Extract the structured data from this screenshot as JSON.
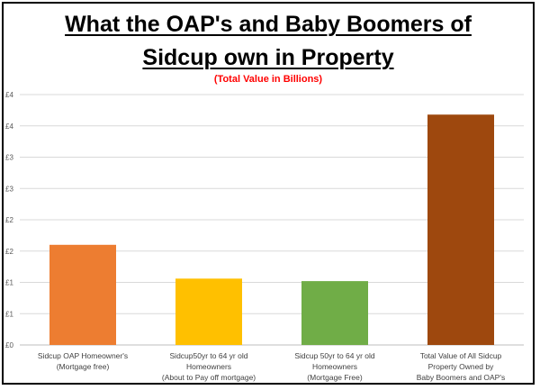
{
  "chart_data": {
    "type": "bar",
    "title_line1": "What the OAP's and Baby Boomers of",
    "title_line2": "Sidcup own in Property",
    "subtitle": "(Total Value in Billions)",
    "xlabel": "",
    "ylabel": "",
    "ylim": [
      0,
      4
    ],
    "yticks": [
      0,
      0.5,
      1,
      1.5,
      2,
      2.5,
      3,
      3.5,
      4
    ],
    "ytick_labels": [
      "£0",
      "£1",
      "£1",
      "£2",
      "£2",
      "£3",
      "£3",
      "£4",
      "£4"
    ],
    "grid": true,
    "categories": [
      [
        "Sidcup OAP Homeowner's",
        "(Mortgage free)"
      ],
      [
        "Sidcup50yr to 64 yr old",
        "Homeowners",
        "(About to Pay off mortgage)"
      ],
      [
        "Sidcup 50yr to 64 yr old",
        "Homeowners",
        "(Mortgage Free)"
      ],
      [
        "Total Value of All Sidcup",
        "Property Owned by",
        "Baby Boomers and OAP's"
      ]
    ],
    "values": [
      1.6,
      1.06,
      1.02,
      3.68
    ],
    "colors": [
      "#ed7d31",
      "#ffc000",
      "#70ad47",
      "#9e480e"
    ]
  }
}
